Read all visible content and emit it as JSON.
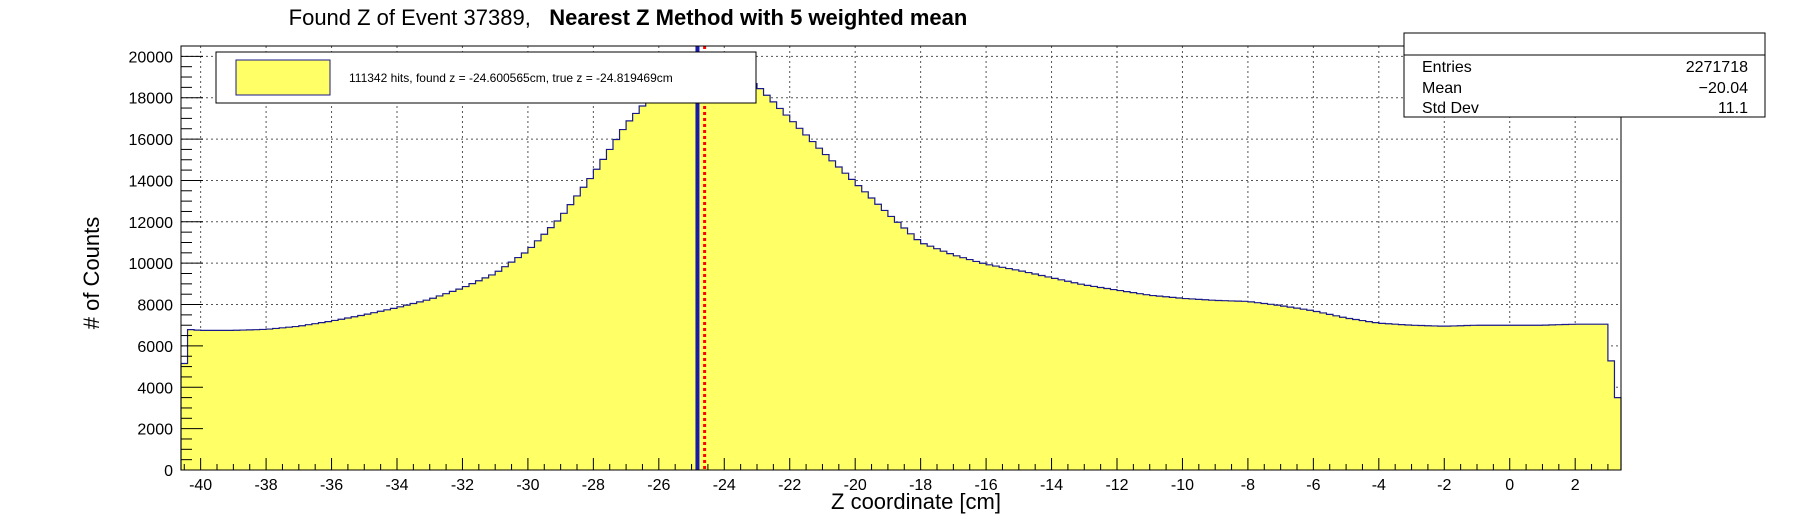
{
  "chart_data": {
    "type": "histogram",
    "title": "Found Z of Event 37389,",
    "subtitle": "Nearest Z Method with 5 weighted mean",
    "xlabel": "Z coordinate [cm]",
    "ylabel": "# of Counts",
    "xlim": [
      -40.6,
      3.4
    ],
    "ylim": [
      0,
      20500
    ],
    "grid": true,
    "bin_width": 0.2,
    "fill_color": "#ffff66",
    "line_color": "#1a1a8c",
    "x_ticks": [
      -40,
      -38,
      -36,
      -34,
      -32,
      -30,
      -28,
      -26,
      -24,
      -22,
      -20,
      -18,
      -16,
      -14,
      -12,
      -10,
      -8,
      -6,
      -4,
      -2,
      0,
      2
    ],
    "y_ticks": [
      0,
      2000,
      4000,
      6000,
      8000,
      10000,
      12000,
      14000,
      16000,
      18000,
      20000
    ],
    "profile": [
      [
        -40.6,
        3500
      ],
      [
        -40.4,
        6800
      ],
      [
        -40.0,
        6750
      ],
      [
        -39.0,
        6750
      ],
      [
        -38.0,
        6800
      ],
      [
        -37.0,
        6950
      ],
      [
        -36.0,
        7200
      ],
      [
        -35.0,
        7500
      ],
      [
        -34.0,
        7850
      ],
      [
        -33.0,
        8250
      ],
      [
        -32.0,
        8800
      ],
      [
        -31.0,
        9500
      ],
      [
        -30.0,
        10600
      ],
      [
        -29.0,
        12200
      ],
      [
        -28.0,
        14300
      ],
      [
        -27.0,
        16700
      ],
      [
        -26.0,
        18500
      ],
      [
        -25.4,
        19400
      ],
      [
        -25.0,
        19800
      ],
      [
        -24.6,
        19800
      ],
      [
        -24.0,
        19400
      ],
      [
        -23.0,
        18600
      ],
      [
        -22.0,
        17000
      ],
      [
        -21.0,
        15400
      ],
      [
        -20.0,
        13900
      ],
      [
        -19.0,
        12400
      ],
      [
        -18.0,
        11000
      ],
      [
        -17.0,
        10400
      ],
      [
        -16.0,
        9950
      ],
      [
        -15.0,
        9650
      ],
      [
        -14.0,
        9300
      ],
      [
        -13.0,
        8950
      ],
      [
        -12.0,
        8700
      ],
      [
        -11.0,
        8450
      ],
      [
        -10.0,
        8300
      ],
      [
        -9.0,
        8200
      ],
      [
        -8.0,
        8150
      ],
      [
        -7.0,
        7950
      ],
      [
        -6.0,
        7700
      ],
      [
        -5.0,
        7350
      ],
      [
        -4.0,
        7100
      ],
      [
        -3.0,
        7000
      ],
      [
        -2.0,
        6950
      ],
      [
        -1.0,
        7000
      ],
      [
        0.0,
        7000
      ],
      [
        1.0,
        7000
      ],
      [
        2.0,
        7050
      ],
      [
        3.0,
        7050
      ],
      [
        3.2,
        3500
      ]
    ],
    "lines": [
      {
        "name": "true z",
        "x": -24.819469,
        "color": "#1a1aa8",
        "style": "solid"
      },
      {
        "name": "found z",
        "x": -24.600565,
        "color": "#ff0000",
        "style": "dotted"
      }
    ],
    "legend": {
      "placement": "top-left",
      "entries": [
        "111342 hits, found z = -24.600565cm, true z = -24.819469cm"
      ]
    },
    "stats": {
      "placement": "top-right",
      "rows": [
        {
          "label": "Entries",
          "value": "2271718"
        },
        {
          "label": "Mean",
          "value": "−20.04"
        },
        {
          "label": "Std Dev",
          "value": "11.1"
        }
      ]
    }
  }
}
